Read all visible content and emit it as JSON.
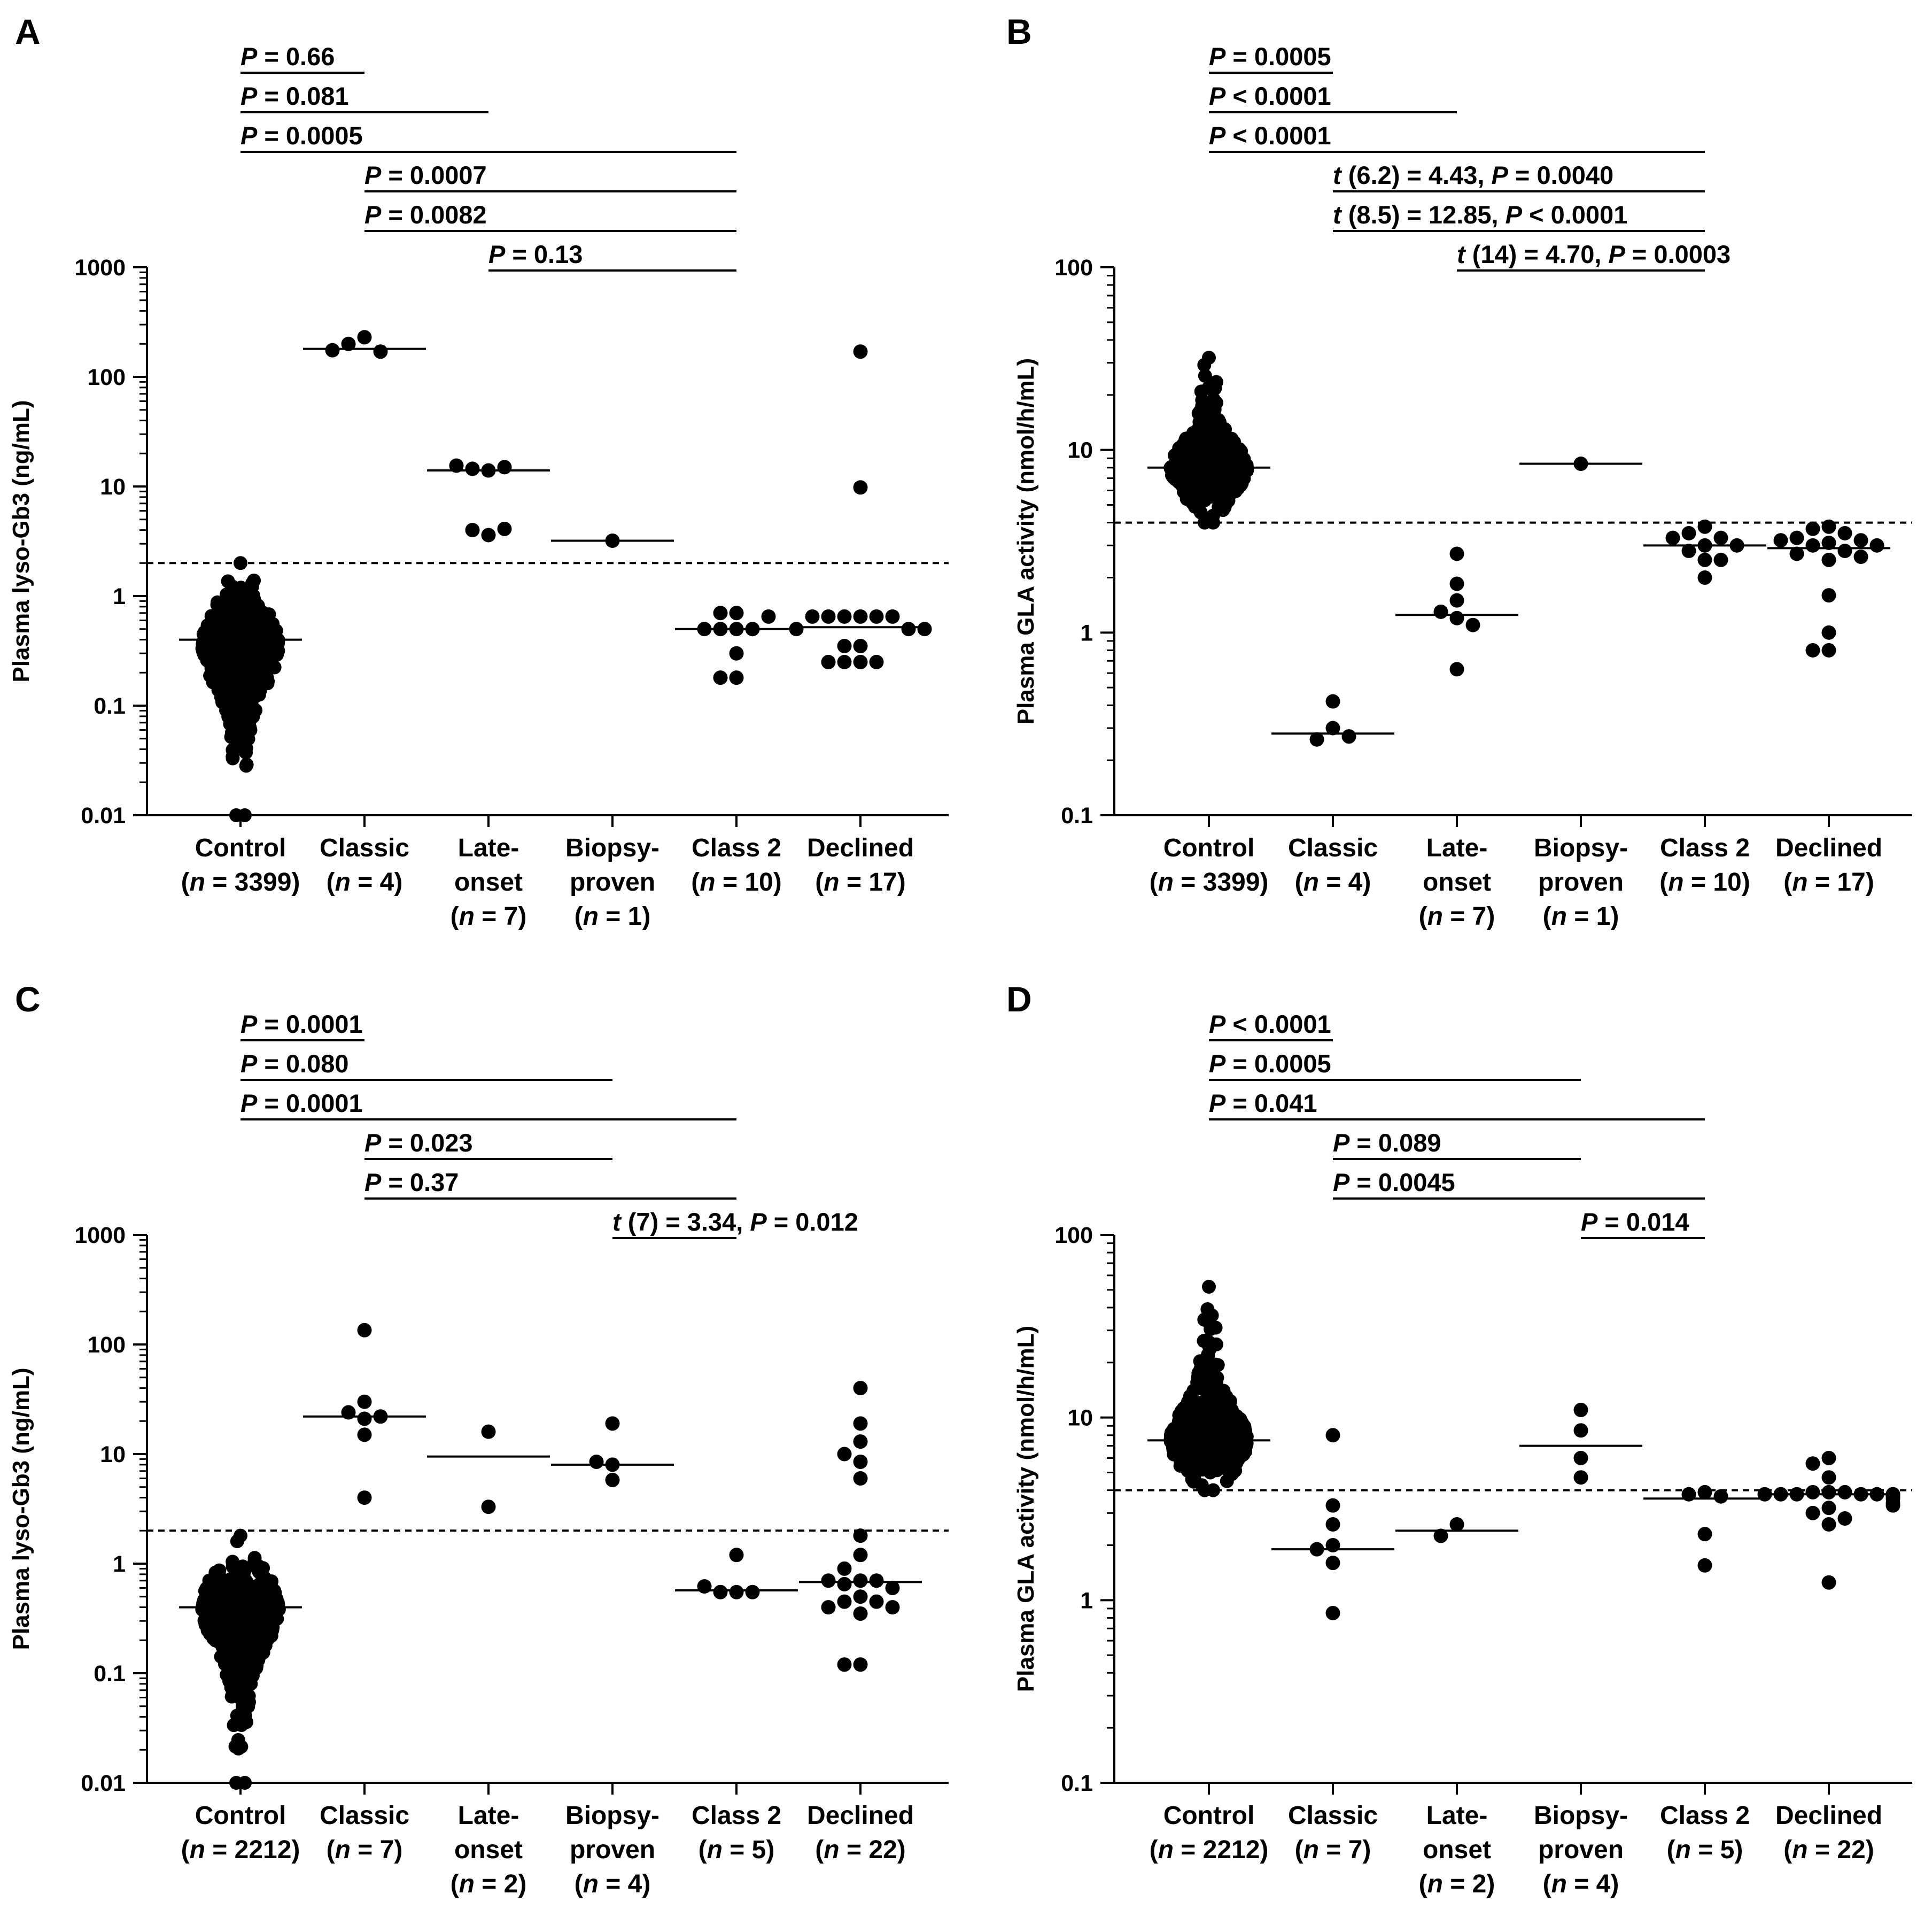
{
  "chart_data": [
    {
      "panel": "A",
      "type": "scatter",
      "ylabel": "Plasma lyso-Gb3 (ng/mL)",
      "yscale": "log",
      "ylim": [
        0.01,
        1000
      ],
      "yticks": [
        "0.01",
        "0.1",
        "1",
        "10",
        "100",
        "1000"
      ],
      "threshold": 2,
      "categories": [
        {
          "label": "Control",
          "n": "(n = 3399)",
          "median": 0.4,
          "dist": {
            "min": 0.01,
            "max": 2.0,
            "center": 0.35
          },
          "points": []
        },
        {
          "label": "Classic",
          "n": "(n = 4)",
          "median": 180,
          "points": [
            230,
            200,
            170,
            175
          ]
        },
        {
          "label": "Late-",
          "label2": "onset",
          "n": "(n = 7)",
          "median": 14,
          "points": [
            14,
            14.5,
            15,
            15.5,
            3.6,
            4.0,
            4.1
          ]
        },
        {
          "label": "Biopsy-",
          "label2": "proven",
          "n": "(n = 1)",
          "median": 3.2,
          "points": [
            3.2
          ]
        },
        {
          "label": "Class 2",
          "n": "(n = 10)",
          "median": 0.5,
          "points": [
            0.7,
            0.7,
            0.5,
            0.5,
            0.5,
            0.5,
            0.3,
            0.18,
            0.18,
            0.65
          ]
        },
        {
          "label": "Declined",
          "n": "(n = 17)",
          "median": 0.52,
          "points": [
            170,
            9.8,
            0.65,
            0.65,
            0.65,
            0.65,
            0.65,
            0.65,
            0.5,
            0.5,
            0.5,
            0.35,
            0.35,
            0.25,
            0.25,
            0.25,
            0.25
          ]
        }
      ],
      "comparisons": [
        {
          "from": 0,
          "to": 1,
          "text": "P = 0.66"
        },
        {
          "from": 0,
          "to": 2,
          "text": "P = 0.081"
        },
        {
          "from": 0,
          "to": 4,
          "text": "P = 0.0005"
        },
        {
          "from": 1,
          "to": 4,
          "text": "P = 0.0007"
        },
        {
          "from": 1,
          "to": 4,
          "text": "P = 0.0082"
        },
        {
          "from": 2,
          "to": 4,
          "text": "P = 0.13"
        }
      ]
    },
    {
      "panel": "B",
      "type": "scatter",
      "ylabel": "Plasma GLA activity (nmol/h/mL)",
      "yscale": "log",
      "ylim": [
        0.1,
        100
      ],
      "yticks": [
        "0.1",
        "1",
        "10",
        "100"
      ],
      "threshold": 4,
      "categories": [
        {
          "label": "Control",
          "n": "(n = 3399)",
          "median": 8.0,
          "dist": {
            "min": 4.0,
            "max": 32,
            "center": 8.0
          },
          "points": []
        },
        {
          "label": "Classic",
          "n": "(n = 4)",
          "median": 0.28,
          "points": [
            0.42,
            0.3,
            0.26,
            0.27
          ]
        },
        {
          "label": "Late-",
          "label2": "onset",
          "n": "(n = 7)",
          "median": 1.25,
          "points": [
            2.7,
            1.85,
            1.5,
            1.2,
            1.3,
            1.1,
            0.63
          ]
        },
        {
          "label": "Biopsy-",
          "label2": "proven",
          "n": "(n = 1)",
          "median": 8.4,
          "points": [
            8.4
          ]
        },
        {
          "label": "Class 2",
          "n": "(n = 10)",
          "median": 3.0,
          "points": [
            3.8,
            3.5,
            3.3,
            3.3,
            3.0,
            3.0,
            2.8,
            2.5,
            2.5,
            2.0
          ]
        },
        {
          "label": "Declined",
          "n": "(n = 17)",
          "median": 2.9,
          "points": [
            3.8,
            3.7,
            3.5,
            3.3,
            3.2,
            3.2,
            3.1,
            3.0,
            3.0,
            2.8,
            2.7,
            2.6,
            2.5,
            1.6,
            1.0,
            0.8,
            0.8
          ]
        }
      ],
      "comparisons": [
        {
          "from": 0,
          "to": 1,
          "text": "P = 0.0005"
        },
        {
          "from": 0,
          "to": 2,
          "text": "P < 0.0001"
        },
        {
          "from": 0,
          "to": 4,
          "text": "P < 0.0001"
        },
        {
          "from": 1,
          "to": 4,
          "text": "t (6.2) = 4.43,  P = 0.0040"
        },
        {
          "from": 1,
          "to": 4,
          "text": "t (8.5) = 12.85,  P < 0.0001"
        },
        {
          "from": 2,
          "to": 4,
          "text": "t (14) = 4.70,  P = 0.0003"
        }
      ]
    },
    {
      "panel": "C",
      "type": "scatter",
      "ylabel": "Plasma lyso-Gb3 (ng/mL)",
      "yscale": "log",
      "ylim": [
        0.01,
        1000
      ],
      "yticks": [
        "0.01",
        "0.1",
        "1",
        "10",
        "100",
        "1000"
      ],
      "threshold": 2,
      "categories": [
        {
          "label": "Control",
          "n": "(n = 2212)",
          "median": 0.4,
          "dist": {
            "min": 0.01,
            "max": 1.8,
            "center": 0.4
          },
          "points": []
        },
        {
          "label": "Classic",
          "n": "(n = 7)",
          "median": 22,
          "points": [
            135,
            30,
            24,
            21,
            22,
            15,
            4.0
          ]
        },
        {
          "label": "Late-",
          "label2": "onset",
          "n": "(n = 2)",
          "median": 9.5,
          "points": [
            16,
            3.3
          ]
        },
        {
          "label": "Biopsy-",
          "label2": "proven",
          "n": "(n = 4)",
          "median": 8.0,
          "points": [
            19,
            8.0,
            8.5,
            5.8
          ]
        },
        {
          "label": "Class 2",
          "n": "(n = 5)",
          "median": 0.57,
          "points": [
            1.2,
            0.55,
            0.55,
            0.55,
            0.62
          ]
        },
        {
          "label": "Declined",
          "n": "(n = 22)",
          "median": 0.68,
          "points": [
            40,
            19,
            13,
            10,
            8.5,
            6.0,
            1.8,
            1.2,
            0.9,
            0.7,
            0.7,
            0.7,
            0.65,
            0.6,
            0.5,
            0.45,
            0.45,
            0.4,
            0.4,
            0.35,
            0.12,
            0.12
          ]
        }
      ],
      "comparisons": [
        {
          "from": 0,
          "to": 1,
          "text": "P = 0.0001"
        },
        {
          "from": 0,
          "to": 3,
          "text": "P = 0.080"
        },
        {
          "from": 0,
          "to": 4,
          "text": "P = 0.0001"
        },
        {
          "from": 1,
          "to": 3,
          "text": "P = 0.023"
        },
        {
          "from": 1,
          "to": 4,
          "text": "P = 0.37"
        },
        {
          "from": 3,
          "to": 4,
          "text": "t (7) = 3.34,  P = 0.012"
        }
      ]
    },
    {
      "panel": "D",
      "type": "scatter",
      "ylabel": "Plasma GLA activity (nmol/h/mL)",
      "yscale": "log",
      "ylim": [
        0.1,
        100
      ],
      "yticks": [
        "0.1",
        "1",
        "10",
        "100"
      ],
      "threshold": 4,
      "categories": [
        {
          "label": "Control",
          "n": "(n = 2212)",
          "median": 7.5,
          "dist": {
            "min": 4.0,
            "max": 52,
            "center": 7.5
          },
          "points": []
        },
        {
          "label": "Classic",
          "n": "(n = 7)",
          "median": 1.9,
          "points": [
            8.0,
            3.3,
            2.6,
            2.0,
            1.9,
            1.6,
            0.85
          ]
        },
        {
          "label": "Late-",
          "label2": "onset",
          "n": "(n = 2)",
          "median": 2.4,
          "points": [
            2.6,
            2.25
          ]
        },
        {
          "label": "Biopsy-",
          "label2": "proven",
          "n": "(n = 4)",
          "median": 7.0,
          "points": [
            11,
            8.5,
            6.0,
            4.7
          ]
        },
        {
          "label": "Class 2",
          "n": "(n = 5)",
          "median": 3.6,
          "points": [
            3.9,
            3.8,
            3.7,
            2.3,
            1.55
          ]
        },
        {
          "label": "Declined",
          "n": "(n = 22)",
          "median": 3.8,
          "points": [
            6.0,
            5.6,
            4.7,
            3.9,
            3.9,
            3.9,
            3.8,
            3.8,
            3.8,
            3.8,
            3.8,
            3.8,
            3.8,
            3.7,
            3.6,
            3.4,
            3.3,
            3.2,
            3.0,
            2.8,
            2.6,
            1.25
          ]
        }
      ],
      "comparisons": [
        {
          "from": 0,
          "to": 1,
          "text": "P < 0.0001"
        },
        {
          "from": 0,
          "to": 3,
          "text": "P = 0.0005"
        },
        {
          "from": 0,
          "to": 4,
          "text": "P = 0.041"
        },
        {
          "from": 1,
          "to": 3,
          "text": "P = 0.089"
        },
        {
          "from": 1,
          "to": 4,
          "text": "P = 0.0045"
        },
        {
          "from": 3,
          "to": 4,
          "text": "P = 0.014"
        }
      ]
    }
  ]
}
